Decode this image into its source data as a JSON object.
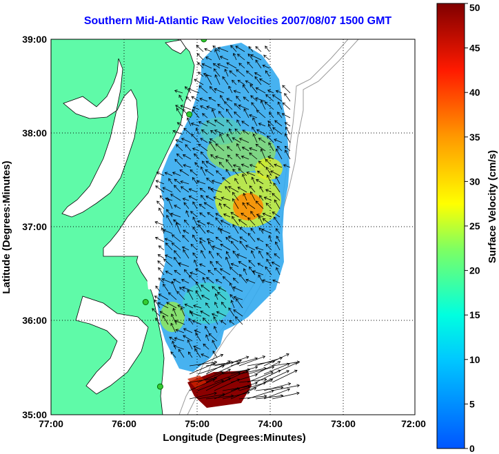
{
  "title": "Southern Mid-Atlantic Raw Velocities 2007/08/07 1500 GMT",
  "xlabel": "Longitude (Degrees:Minutes)",
  "ylabel": "Latitude (Degrees:Minutes)",
  "colorbar_label": "Surface Velocity (cm/s)",
  "x_ticks": [
    "77:00",
    "76:00",
    "75:00",
    "74:00",
    "73:00",
    "72:00"
  ],
  "y_ticks": [
    "39:00",
    "38:00",
    "37:00",
    "36:00",
    "35:00"
  ],
  "colorbar_ticks": [
    "50",
    "45",
    "40",
    "35",
    "30",
    "25",
    "20",
    "15",
    "10",
    "5",
    "0"
  ],
  "colors": {
    "land": "#5ffaa8",
    "water": "#ffffff",
    "title": "#0000ff",
    "station": "#33cc33"
  },
  "chart_data": {
    "type": "heatmap",
    "title": "Southern Mid-Atlantic Raw Velocities 2007/08/07 1500 GMT",
    "xlabel": "Longitude (Degrees:Minutes)",
    "ylabel": "Latitude (Degrees:Minutes)",
    "xlim": [
      -77,
      -72
    ],
    "ylim": [
      35,
      39
    ],
    "grid": true,
    "colorbar": {
      "label": "Surface Velocity (cm/s)",
      "range": [
        0,
        50
      ],
      "colormap": "jet"
    },
    "velocity_samples": [
      {
        "lon": -74.7,
        "lat": 38.8,
        "speed": 10
      },
      {
        "lon": -74.4,
        "lat": 38.4,
        "speed": 12
      },
      {
        "lon": -74.2,
        "lat": 37.8,
        "speed": 22
      },
      {
        "lon": -74.4,
        "lat": 37.2,
        "speed": 33
      },
      {
        "lon": -74.9,
        "lat": 37.0,
        "speed": 12
      },
      {
        "lon": -74.6,
        "lat": 36.6,
        "speed": 10
      },
      {
        "lon": -74.8,
        "lat": 36.0,
        "speed": 14
      },
      {
        "lon": -75.2,
        "lat": 35.9,
        "speed": 26
      },
      {
        "lon": -74.7,
        "lat": 35.3,
        "speed": 50
      }
    ],
    "stations": [
      {
        "lon": -74.9,
        "lat": 39.0
      },
      {
        "lon": -75.1,
        "lat": 38.2
      },
      {
        "lon": -75.7,
        "lat": 36.2
      },
      {
        "lon": -75.5,
        "lat": 35.3
      }
    ]
  }
}
